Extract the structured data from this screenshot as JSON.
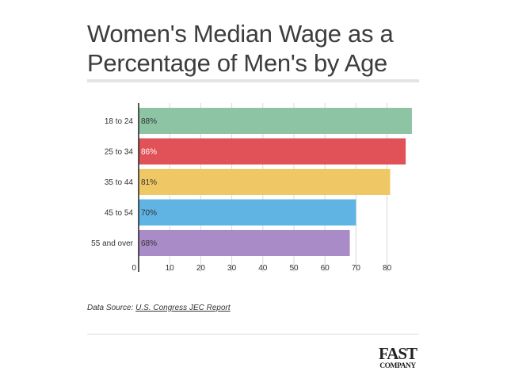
{
  "title": "Women's Median Wage as a Percentage of Men's by Age",
  "source": {
    "prefix": "Data Source:",
    "link_text": "U.S. Congress JEC Report"
  },
  "logo": {
    "line1": "FAST",
    "line2": "COMPANY"
  },
  "chart_data": {
    "type": "bar",
    "orientation": "horizontal",
    "title": "Women's Median Wage as a Percentage of Men's by Age",
    "xlabel": "",
    "ylabel": "",
    "categories": [
      "18 to 24",
      "25 to 34",
      "35 to 44",
      "45 to 54",
      "55 and over"
    ],
    "values": [
      88,
      86,
      81,
      70,
      68
    ],
    "value_labels": [
      "88%",
      "86%",
      "81%",
      "70%",
      "68%"
    ],
    "colors": [
      "#8dc4a4",
      "#e05257",
      "#efc865",
      "#5fb4e4",
      "#a98bc7"
    ],
    "xlim": [
      0,
      90
    ],
    "xticks": [
      0,
      10,
      20,
      30,
      40,
      50,
      60,
      70,
      80
    ],
    "grid": true,
    "legend": "none"
  }
}
